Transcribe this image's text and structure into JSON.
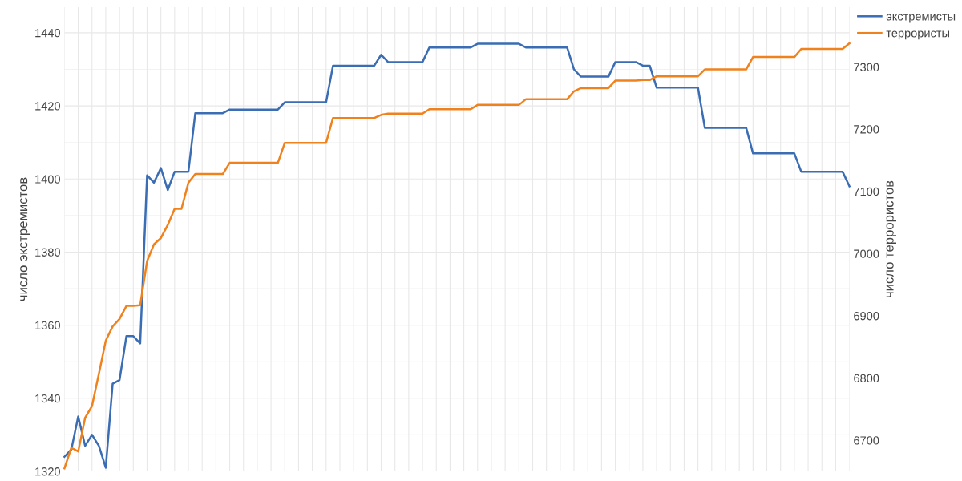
{
  "chart_data": {
    "type": "line",
    "categories": [
      null,
      null,
      null,
      null,
      null,
      null,
      null,
      null,
      null,
      null,
      null,
      null,
      null,
      null,
      null,
      null,
      null,
      null,
      null,
      null,
      null,
      null,
      null,
      null,
      null,
      null,
      null,
      null,
      null,
      null,
      null,
      null,
      null,
      null,
      null,
      null,
      null,
      null,
      null,
      null,
      null,
      null,
      null,
      null,
      null,
      null,
      null,
      null,
      null,
      null,
      null,
      null,
      null,
      null,
      null,
      null,
      null,
      null,
      null,
      null,
      null,
      null,
      null,
      null,
      null,
      null,
      null,
      null,
      null,
      null,
      null,
      null,
      null,
      null,
      null,
      null,
      null,
      null,
      null,
      null,
      null,
      null,
      null,
      null,
      null,
      null,
      null,
      null,
      null,
      null,
      null,
      null,
      null,
      null,
      null,
      null,
      null,
      null,
      null,
      null,
      null,
      null,
      null,
      null,
      null,
      null,
      null,
      null,
      null,
      null,
      null,
      null,
      null,
      null,
      null
    ],
    "ylabel": "число экстремистов",
    "y2label": "число террористов",
    "ylim": [
      1320,
      1447
    ],
    "yticks": [
      1320,
      1340,
      1360,
      1380,
      1400,
      1420,
      1440
    ],
    "y2lim": [
      6650,
      7396
    ],
    "y2ticks": [
      6700,
      6800,
      6900,
      7000,
      7100,
      7200,
      7300
    ],
    "grid": true,
    "legend": "top right",
    "tick_labels": "y",
    "marker": "none",
    "line_style": "solid",
    "series": [
      {
        "name": "экстремисты",
        "color": "#3a6db3",
        "values": [
          1324,
          1326,
          1335,
          1327,
          1330,
          1327,
          1321,
          1344,
          1345,
          1357,
          1357,
          1355,
          1401,
          1399,
          1403,
          1397,
          1402,
          1402,
          1402,
          1418,
          1418,
          1418,
          1418,
          1418,
          1419,
          1419,
          1419,
          1419,
          1419,
          1419,
          1419,
          1419,
          1421,
          1421,
          1421,
          1421,
          1421,
          1421,
          1421,
          1431,
          1431,
          1431,
          1431,
          1431,
          1431,
          1431,
          1434,
          1432,
          1432,
          1432,
          1432,
          1432,
          1432,
          1436,
          1436,
          1436,
          1436,
          1436,
          1436,
          1436,
          1437,
          1437,
          1437,
          1437,
          1437,
          1437,
          1437,
          1436,
          1436,
          1436,
          1436,
          1436,
          1436,
          1436,
          1430,
          1428,
          1428,
          1428,
          1428,
          1428,
          1432,
          1432,
          1432,
          1432,
          1431,
          1431,
          1425,
          1425,
          1425,
          1425,
          1425,
          1425,
          1425,
          1414,
          1414,
          1414,
          1414,
          1414,
          1414,
          1414,
          1407,
          1407,
          1407,
          1407,
          1407,
          1407,
          1407,
          1402,
          1402,
          1402,
          1402,
          1402,
          1402,
          1402,
          1398
        ]
      },
      {
        "name": "террористы",
        "color": "#f0821e",
        "axis": "y2",
        "values": [
          6655,
          6688,
          6682,
          6736,
          6755,
          6807,
          6860,
          6883,
          6895,
          6916,
          6916,
          6917,
          6988,
          7015,
          7025,
          7046,
          7072,
          7072,
          7114,
          7128,
          7128,
          7128,
          7128,
          7128,
          7146,
          7146,
          7146,
          7146,
          7146,
          7146,
          7146,
          7146,
          7178,
          7178,
          7178,
          7178,
          7178,
          7178,
          7178,
          7218,
          7218,
          7218,
          7218,
          7218,
          7218,
          7218,
          7223,
          7225,
          7225,
          7225,
          7225,
          7225,
          7225,
          7232,
          7232,
          7232,
          7232,
          7232,
          7232,
          7232,
          7239,
          7239,
          7239,
          7239,
          7239,
          7239,
          7239,
          7248,
          7248,
          7248,
          7248,
          7248,
          7248,
          7248,
          7261,
          7266,
          7266,
          7266,
          7266,
          7266,
          7278,
          7278,
          7278,
          7278,
          7279,
          7279,
          7285,
          7285,
          7285,
          7285,
          7285,
          7285,
          7285,
          7296,
          7296,
          7296,
          7296,
          7296,
          7296,
          7296,
          7316,
          7316,
          7316,
          7316,
          7316,
          7316,
          7316,
          7329,
          7329,
          7329,
          7329,
          7329,
          7329,
          7329,
          7338
        ]
      }
    ]
  }
}
